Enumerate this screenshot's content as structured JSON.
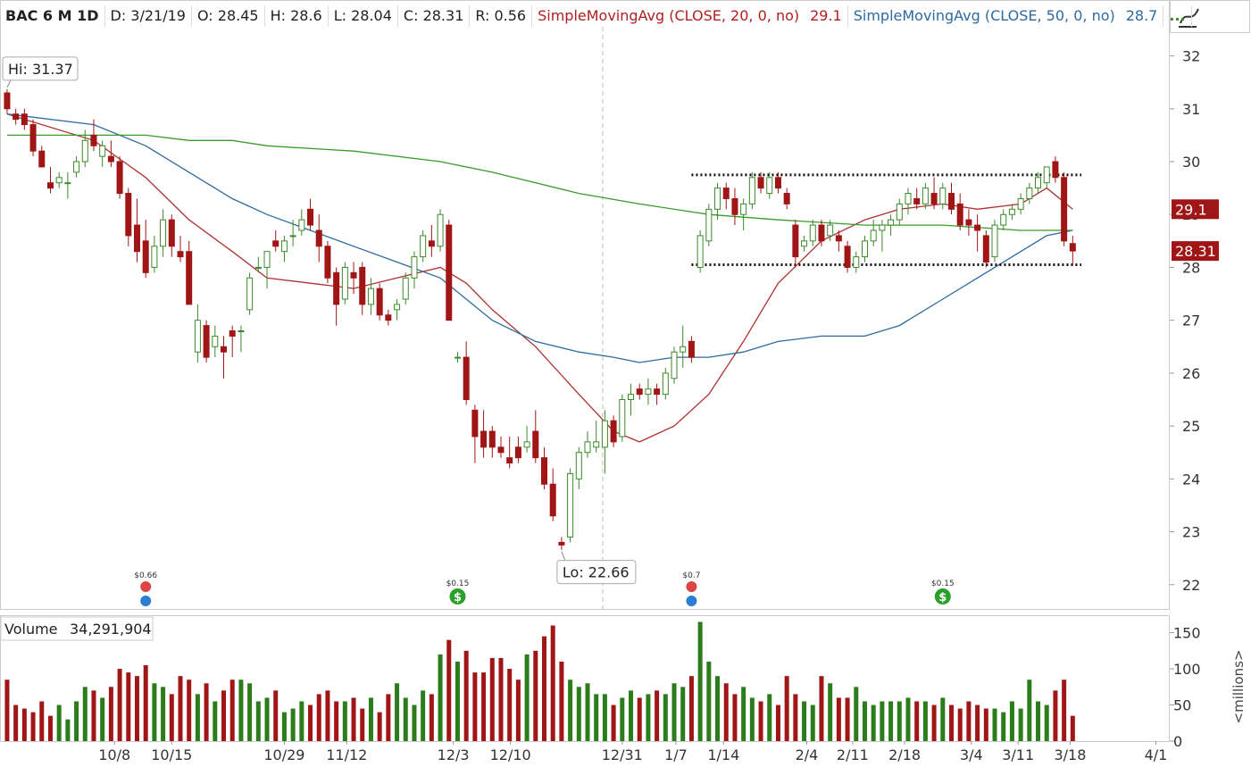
{
  "chart_data": {
    "type": "candlestick",
    "header": {
      "symbol": "BAC 6 M 1D",
      "date": "D: 3/21/19",
      "open": "O: 28.45",
      "high": "H: 28.6",
      "low": "L: 28.04",
      "close": "C: 28.31",
      "range": "R: 0.56",
      "sma20": "SimpleMovingAvg (CLOSE, 20, 0, no)",
      "sma20_value": "29.1",
      "sma50": "SimpleMovingAvg (CLOSE, 50, 0, no)",
      "sma50_value": "28.7",
      "more": "..."
    },
    "ohlc": [
      [
        31.3,
        31.37,
        30.9,
        31.0
      ],
      [
        30.9,
        31.0,
        30.7,
        30.8
      ],
      [
        30.9,
        31.0,
        30.6,
        30.7
      ],
      [
        30.7,
        30.8,
        30.1,
        30.2
      ],
      [
        30.2,
        30.3,
        29.9,
        29.9
      ],
      [
        29.6,
        29.9,
        29.4,
        29.5
      ],
      [
        29.6,
        29.8,
        29.5,
        29.7
      ],
      [
        29.6,
        29.8,
        29.3,
        29.6
      ],
      [
        29.8,
        30.1,
        29.7,
        30.0
      ],
      [
        30.0,
        30.6,
        29.9,
        30.4
      ],
      [
        30.5,
        30.8,
        30.2,
        30.3
      ],
      [
        30.1,
        30.4,
        29.9,
        30.3
      ],
      [
        30.1,
        30.4,
        29.9,
        30.0
      ],
      [
        30.0,
        30.1,
        29.3,
        29.4
      ],
      [
        29.4,
        29.5,
        28.4,
        28.6
      ],
      [
        28.8,
        29.3,
        28.1,
        28.3
      ],
      [
        28.5,
        28.9,
        27.8,
        27.9
      ],
      [
        28.0,
        28.6,
        27.9,
        28.4
      ],
      [
        28.4,
        29.1,
        28.2,
        28.9
      ],
      [
        28.9,
        29.0,
        28.2,
        28.4
      ],
      [
        28.3,
        28.6,
        28.1,
        28.2
      ],
      [
        28.3,
        28.5,
        27.3,
        27.3
      ],
      [
        26.4,
        27.3,
        26.2,
        27.0
      ],
      [
        26.9,
        27.0,
        26.2,
        26.3
      ],
      [
        26.5,
        26.9,
        26.3,
        26.7
      ],
      [
        26.5,
        26.7,
        25.9,
        26.4
      ],
      [
        26.8,
        26.9,
        26.3,
        26.7
      ],
      [
        26.8,
        26.9,
        26.4,
        26.8
      ],
      [
        27.2,
        27.9,
        27.1,
        27.8
      ],
      [
        28.0,
        28.2,
        27.9,
        28.0
      ],
      [
        28.0,
        28.3,
        27.6,
        28.3
      ],
      [
        28.5,
        28.7,
        28.3,
        28.4
      ],
      [
        28.3,
        28.6,
        28.1,
        28.5
      ],
      [
        28.6,
        28.9,
        28.4,
        28.6
      ],
      [
        28.7,
        29.1,
        28.6,
        28.9
      ],
      [
        29.1,
        29.3,
        28.7,
        28.8
      ],
      [
        28.7,
        29.0,
        28.1,
        28.4
      ],
      [
        28.4,
        28.5,
        27.7,
        27.8
      ],
      [
        27.9,
        28.0,
        26.9,
        27.3
      ],
      [
        27.4,
        28.1,
        27.3,
        28.0
      ],
      [
        27.9,
        28.1,
        27.5,
        27.8
      ],
      [
        28.0,
        28.1,
        27.1,
        27.3
      ],
      [
        27.3,
        27.8,
        27.1,
        27.6
      ],
      [
        27.6,
        27.7,
        27.0,
        27.1
      ],
      [
        27.1,
        27.2,
        26.9,
        27.0
      ],
      [
        27.2,
        27.4,
        27.0,
        27.3
      ],
      [
        27.4,
        27.9,
        27.3,
        27.8
      ],
      [
        27.8,
        28.3,
        27.6,
        28.2
      ],
      [
        28.2,
        28.7,
        28.1,
        28.6
      ],
      [
        28.5,
        28.8,
        28.2,
        28.4
      ],
      [
        28.4,
        29.1,
        28.3,
        29.0
      ],
      [
        28.8,
        28.9,
        27.0,
        27.0
      ],
      [
        26.3,
        26.4,
        26.2,
        26.3
      ],
      [
        26.3,
        26.6,
        25.4,
        25.5
      ],
      [
        25.3,
        25.4,
        24.3,
        24.8
      ],
      [
        24.9,
        25.3,
        24.4,
        24.6
      ],
      [
        24.9,
        25.0,
        24.4,
        24.6
      ],
      [
        24.6,
        24.8,
        24.4,
        24.5
      ],
      [
        24.4,
        24.8,
        24.2,
        24.3
      ],
      [
        24.6,
        24.8,
        24.3,
        24.4
      ],
      [
        24.6,
        25.0,
        24.5,
        24.7
      ],
      [
        24.9,
        25.3,
        24.3,
        24.4
      ],
      [
        24.4,
        24.6,
        23.8,
        23.9
      ],
      [
        23.9,
        24.2,
        23.2,
        23.3
      ],
      [
        22.8,
        22.9,
        22.66,
        22.75
      ],
      [
        22.9,
        24.2,
        22.8,
        24.1
      ],
      [
        24.0,
        24.6,
        23.8,
        24.5
      ],
      [
        24.5,
        24.9,
        24.4,
        24.7
      ],
      [
        24.6,
        25.1,
        24.5,
        24.7
      ],
      [
        24.6,
        25.3,
        24.1,
        25.1
      ],
      [
        25.1,
        25.2,
        24.6,
        24.7
      ],
      [
        24.8,
        25.6,
        24.7,
        25.5
      ],
      [
        25.5,
        25.8,
        25.2,
        25.6
      ],
      [
        25.7,
        25.8,
        25.5,
        25.6
      ],
      [
        25.6,
        25.9,
        25.4,
        25.7
      ],
      [
        25.7,
        25.8,
        25.4,
        25.6
      ],
      [
        25.6,
        26.1,
        25.5,
        26.0
      ],
      [
        25.9,
        26.5,
        25.8,
        26.4
      ],
      [
        26.4,
        26.9,
        26.1,
        26.5
      ],
      [
        26.6,
        26.7,
        26.2,
        26.3
      ],
      [
        28.0,
        28.7,
        27.9,
        28.6
      ],
      [
        28.5,
        29.2,
        28.4,
        29.1
      ],
      [
        29.1,
        29.6,
        28.9,
        29.5
      ],
      [
        29.5,
        29.6,
        29.1,
        29.3
      ],
      [
        29.3,
        29.5,
        28.8,
        29.0
      ],
      [
        29.0,
        29.3,
        28.7,
        29.2
      ],
      [
        29.2,
        29.8,
        29.1,
        29.7
      ],
      [
        29.7,
        29.8,
        29.4,
        29.5
      ],
      [
        29.4,
        29.8,
        29.3,
        29.7
      ],
      [
        29.7,
        29.8,
        29.4,
        29.5
      ],
      [
        29.4,
        29.5,
        29.1,
        29.2
      ],
      [
        28.8,
        28.9,
        28.0,
        28.2
      ],
      [
        28.4,
        28.6,
        28.3,
        28.5
      ],
      [
        28.5,
        28.9,
        28.4,
        28.8
      ],
      [
        28.8,
        28.9,
        28.4,
        28.5
      ],
      [
        28.6,
        28.9,
        28.5,
        28.8
      ],
      [
        28.6,
        28.7,
        28.3,
        28.5
      ],
      [
        28.4,
        28.5,
        27.9,
        28.0
      ],
      [
        28.0,
        28.3,
        27.9,
        28.2
      ],
      [
        28.2,
        28.6,
        28.1,
        28.5
      ],
      [
        28.5,
        28.9,
        28.4,
        28.7
      ],
      [
        28.7,
        28.9,
        28.3,
        28.8
      ],
      [
        28.8,
        29.0,
        28.6,
        28.9
      ],
      [
        28.9,
        29.3,
        28.8,
        29.2
      ],
      [
        29.2,
        29.5,
        29.0,
        29.4
      ],
      [
        29.3,
        29.5,
        29.1,
        29.2
      ],
      [
        29.2,
        29.6,
        29.1,
        29.5
      ],
      [
        29.4,
        29.7,
        29.1,
        29.2
      ],
      [
        29.2,
        29.6,
        29.1,
        29.5
      ],
      [
        29.4,
        29.6,
        29.0,
        29.1
      ],
      [
        29.2,
        29.4,
        28.7,
        28.8
      ],
      [
        28.9,
        29.1,
        28.6,
        28.8
      ],
      [
        28.8,
        29.0,
        28.3,
        28.7
      ],
      [
        28.6,
        28.7,
        28.0,
        28.1
      ],
      [
        28.2,
        28.9,
        28.1,
        28.8
      ],
      [
        28.8,
        29.1,
        28.7,
        29.0
      ],
      [
        29.0,
        29.2,
        28.9,
        29.1
      ],
      [
        29.1,
        29.4,
        29.0,
        29.3
      ],
      [
        29.3,
        29.6,
        29.2,
        29.5
      ],
      [
        29.5,
        29.8,
        29.4,
        29.7
      ],
      [
        29.6,
        29.9,
        29.5,
        29.9
      ],
      [
        30.0,
        30.1,
        29.6,
        29.7
      ],
      [
        29.7,
        29.8,
        28.4,
        28.5
      ],
      [
        28.45,
        28.6,
        28.04,
        28.31
      ]
    ],
    "up_color": "#3a8a2a",
    "down_color": "#a01515",
    "xlim": [
      -0.82,
      134.2
    ],
    "xticks": [
      {
        "value": 12.4,
        "label": "10/8"
      },
      {
        "value": 19,
        "label": "10/15"
      },
      {
        "value": 32,
        "label": "10/29"
      },
      {
        "value": 39.2,
        "label": "11/12"
      },
      {
        "value": 51.5,
        "label": "12/3"
      },
      {
        "value": 58.1,
        "label": "12/10"
      },
      {
        "value": 71,
        "label": "12/31"
      },
      {
        "value": 77.2,
        "label": "1/7"
      },
      {
        "value": 82.7,
        "label": "1/14"
      },
      {
        "value": 92.3,
        "label": "2/4"
      },
      {
        "value": 97.6,
        "label": "2/11"
      },
      {
        "value": 103.6,
        "label": "2/18"
      },
      {
        "value": 111.3,
        "label": "3/4"
      },
      {
        "value": 116.7,
        "label": "3/11"
      },
      {
        "value": 122.7,
        "label": "3/18"
      },
      {
        "value": 132.6,
        "label": "4/1"
      }
    ],
    "ylim": [
      21.54,
      33.04
    ],
    "yticks": [
      22,
      23,
      24,
      25,
      26,
      27,
      28,
      29,
      30,
      31,
      32
    ],
    "lines": [
      {
        "name": "SimpleMovingAvg (CLOSE, 20, 0, no)",
        "color": "#b03030",
        "x": [
          0,
          10,
          16,
          21,
          26,
          30,
          35,
          40,
          45,
          50,
          53,
          56,
          61,
          66,
          70,
          73,
          77,
          81,
          85,
          89,
          94,
          99,
          103,
          108,
          112,
          117,
          120,
          123
        ],
        "values": [
          30.9,
          30.4,
          29.7,
          28.9,
          28.3,
          27.8,
          27.7,
          27.6,
          27.8,
          28.0,
          27.7,
          27.2,
          26.5,
          25.6,
          24.9,
          24.7,
          25.0,
          25.6,
          26.6,
          27.7,
          28.5,
          28.9,
          29.1,
          29.2,
          29.1,
          29.2,
          29.5,
          29.1
        ]
      },
      {
        "name": "SimpleMovingAvg (CLOSE, 50, 0, no)",
        "color": "#2d6aa0",
        "x": [
          0,
          10,
          16,
          21,
          26,
          30,
          35,
          40,
          45,
          50,
          53,
          56,
          61,
          66,
          70,
          73,
          77,
          81,
          85,
          89,
          94,
          99,
          103,
          108,
          112,
          117,
          120,
          123
        ],
        "values": [
          30.9,
          30.7,
          30.3,
          29.8,
          29.3,
          29.0,
          28.7,
          28.4,
          28.1,
          27.8,
          27.4,
          27.0,
          26.6,
          26.4,
          26.3,
          26.2,
          26.3,
          26.3,
          26.4,
          26.6,
          26.7,
          26.7,
          26.9,
          27.4,
          27.8,
          28.3,
          28.6,
          28.7
        ]
      },
      {
        "color": "#3a9a2a",
        "x": [
          0,
          10,
          16,
          21,
          26,
          30,
          40,
          50,
          56,
          66,
          73,
          81,
          89,
          99,
          108,
          117,
          123
        ],
        "values": [
          30.5,
          30.5,
          30.5,
          30.4,
          30.4,
          30.3,
          30.2,
          30.0,
          29.8,
          29.4,
          29.2,
          29.0,
          28.9,
          28.8,
          28.8,
          28.7,
          28.7
        ]
      }
    ],
    "price_tags": [
      {
        "value": 29.1,
        "label": "29.1"
      },
      {
        "value": 28.31,
        "label": "28.31"
      }
    ],
    "hi": {
      "label": "Hi: 31.37",
      "value": 31.37,
      "x": 0
    },
    "lo": {
      "label": "Lo: 22.66",
      "value": 22.66,
      "x": 64
    },
    "levels": {
      "values": [
        29.75,
        28.05
      ],
      "x": [
        79,
        124
      ]
    },
    "events": [
      {
        "label": "$0.66",
        "x": 16
      },
      {
        "label": "$0.15",
        "x": 52
      },
      {
        "label": "$0.7",
        "x": 79
      },
      {
        "label": "$0.15",
        "x": 108
      }
    ],
    "volume": {
      "title": "Volume",
      "last": "34,291,904",
      "unit": "<millions>",
      "values": [
        85,
        50,
        45,
        40,
        55,
        35,
        50,
        30,
        55,
        75,
        70,
        60,
        75,
        100,
        95,
        90,
        105,
        80,
        75,
        65,
        90,
        85,
        65,
        80,
        55,
        70,
        85,
        85,
        80,
        55,
        60,
        70,
        40,
        45,
        55,
        50,
        65,
        70,
        55,
        55,
        60,
        45,
        60,
        40,
        65,
        80,
        60,
        50,
        70,
        65,
        120,
        140,
        110,
        125,
        95,
        95,
        115,
        115,
        100,
        85,
        120,
        125,
        145,
        160,
        110,
        85,
        75,
        80,
        65,
        65,
        50,
        60,
        70,
        60,
        65,
        70,
        65,
        80,
        75,
        90,
        165,
        110,
        90,
        80,
        65,
        75,
        60,
        55,
        65,
        50,
        90,
        65,
        55,
        50,
        90,
        80,
        60,
        60,
        75,
        55,
        50,
        55,
        55,
        55,
        60,
        55,
        55,
        50,
        60,
        50,
        45,
        55,
        50,
        45,
        45,
        40,
        55,
        45,
        85,
        55,
        50,
        70,
        85,
        35
      ],
      "ylim": [
        0,
        173
      ],
      "yticks": [
        0,
        50,
        100,
        150
      ]
    }
  }
}
